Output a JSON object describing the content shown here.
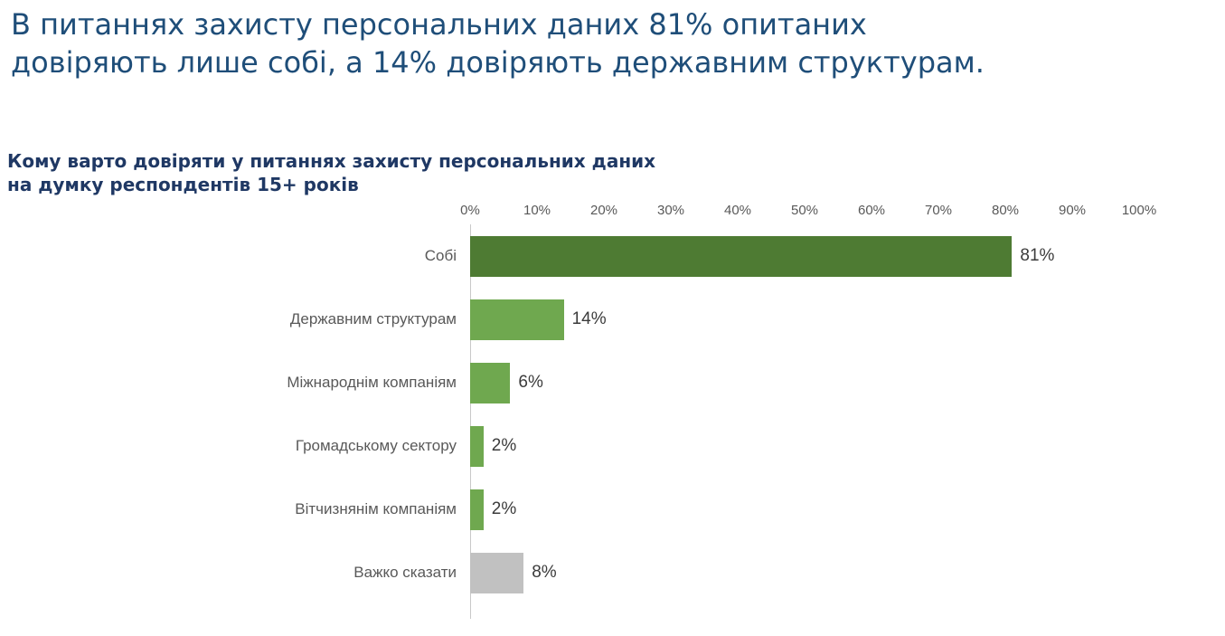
{
  "title": "В питаннях захисту персональних даних 81% опитаних\nдовіряють лише собі, а 14% довіряють державним структурам.",
  "colors": {
    "title_text": "#1f4e79",
    "chart_title_text": "#1f3864",
    "dark_green": "#4e7b33",
    "light_green": "#6fa84f",
    "gray_bar": "#c1c1c1",
    "axis_line": "#c9c9c9",
    "tick_text": "#595959"
  },
  "chart_data": {
    "type": "bar",
    "orientation": "horizontal",
    "title": "Кому варто довіряти у питаннях захисту персональних даних\nна думку респондентів 15+ років",
    "categories": [
      "Собі",
      "Державним структурам",
      "Міжнароднім компаніям",
      "Громадському сектору",
      "Вітчизнянім компаніям",
      "Важко сказати"
    ],
    "values": [
      81,
      14,
      6,
      2,
      2,
      8
    ],
    "value_labels": [
      "81%",
      "14%",
      "6%",
      "2%",
      "2%",
      "8%"
    ],
    "bar_colors": [
      "#4e7b33",
      "#6fa84f",
      "#6fa84f",
      "#6fa84f",
      "#6fa84f",
      "#c1c1c1"
    ],
    "x_ticks": [
      "0%",
      "10%",
      "20%",
      "30%",
      "40%",
      "50%",
      "60%",
      "70%",
      "80%",
      "90%",
      "100%"
    ],
    "xlim": [
      0,
      100
    ],
    "grid": false,
    "legend": "none"
  }
}
